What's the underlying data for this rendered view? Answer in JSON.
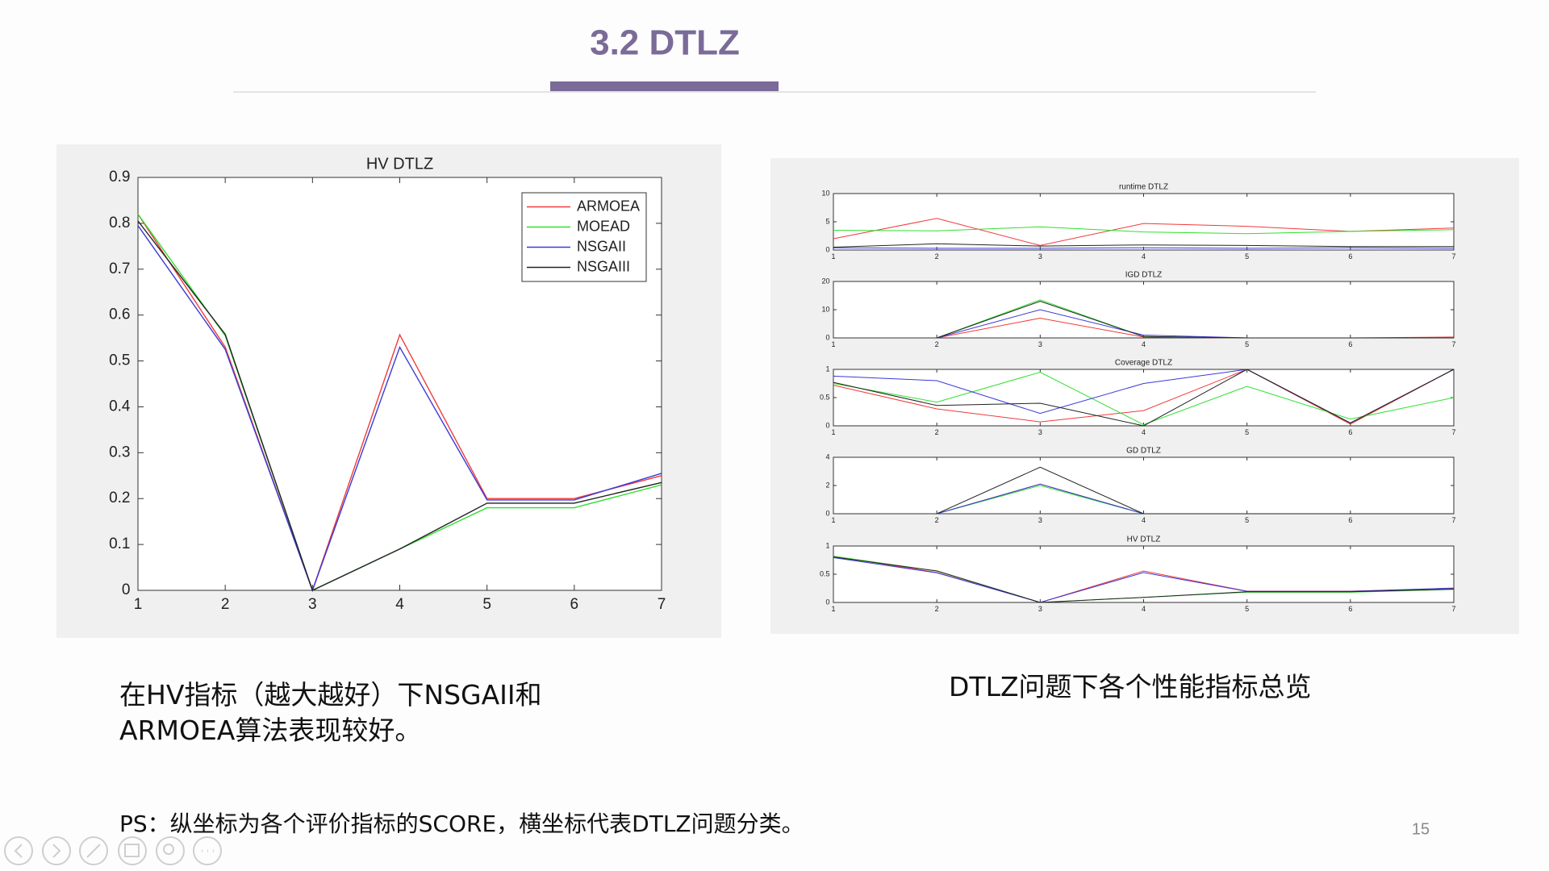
{
  "title": "3.2 DTLZ",
  "chart_data": [
    {
      "type": "line",
      "title": "HV DTLZ",
      "x": [
        1,
        2,
        3,
        4,
        5,
        6,
        7
      ],
      "xlim": [
        1,
        7
      ],
      "xticks": [
        1,
        2,
        3,
        4,
        5,
        6,
        7
      ],
      "ylim": [
        0,
        0.9
      ],
      "yticks": [
        0,
        0.1,
        0.2,
        0.3,
        0.4,
        0.5,
        0.6,
        0.7,
        0.8,
        0.9
      ],
      "legend": "upper right",
      "series": [
        {
          "name": "ARMOEA",
          "color": "#f03a3a",
          "values": [
            0.82,
            0.53,
            0,
            0.557,
            0.2,
            0.2,
            0.25
          ]
        },
        {
          "name": "MOEAD",
          "color": "#2fe02f",
          "values": [
            0.82,
            0.555,
            0,
            0.09,
            0.18,
            0.18,
            0.23
          ]
        },
        {
          "name": "NSGAII",
          "color": "#3a3ad8",
          "values": [
            0.795,
            0.525,
            0,
            0.53,
            0.197,
            0.197,
            0.255
          ]
        },
        {
          "name": "NSGAIII",
          "color": "#222222",
          "values": [
            0.805,
            0.558,
            0,
            0.09,
            0.19,
            0.19,
            0.235
          ]
        }
      ]
    },
    {
      "type": "line",
      "title": "runtime DTLZ",
      "x": [
        1,
        2,
        3,
        4,
        5,
        6,
        7
      ],
      "xlim": [
        1,
        7
      ],
      "xticks": [
        1,
        2,
        3,
        4,
        5,
        6,
        7
      ],
      "ylim": [
        0,
        10
      ],
      "yticks": [
        0,
        5,
        10
      ],
      "series": [
        {
          "color": "#f03a3a",
          "values": [
            2,
            5.6,
            0.8,
            4.7,
            4.2,
            3.3,
            3.9
          ]
        },
        {
          "color": "#2fe02f",
          "values": [
            3.5,
            3.4,
            4.1,
            3.2,
            2.9,
            3.3,
            3.6
          ]
        },
        {
          "color": "#3a3ad8",
          "values": [
            0.4,
            0.3,
            0.3,
            0.4,
            0.3,
            0.4,
            0.3
          ]
        },
        {
          "color": "#222222",
          "values": [
            0.5,
            1.1,
            0.7,
            0.9,
            0.8,
            0.6,
            0.6
          ]
        }
      ]
    },
    {
      "type": "line",
      "title": "IGD DTLZ",
      "x": [
        1,
        2,
        3,
        4,
        5,
        6,
        7
      ],
      "xlim": [
        1,
        7
      ],
      "xticks": [
        1,
        2,
        3,
        4,
        5,
        6,
        7
      ],
      "ylim": [
        0,
        20
      ],
      "yticks": [
        0,
        10,
        20
      ],
      "series": [
        {
          "color": "#f03a3a",
          "values": [
            null,
            0,
            7,
            0.3,
            0,
            0,
            0.3
          ]
        },
        {
          "color": "#2fe02f",
          "values": [
            null,
            0,
            13.5,
            0.5,
            0,
            0,
            0
          ]
        },
        {
          "color": "#3a3ad8",
          "values": [
            null,
            0,
            10,
            1,
            0,
            0,
            0
          ]
        },
        {
          "color": "#222222",
          "values": [
            null,
            0,
            13,
            0.5,
            0,
            0,
            0
          ]
        }
      ]
    },
    {
      "type": "line",
      "title": "Coverage DTLZ",
      "x": [
        1,
        2,
        3,
        4,
        5,
        6,
        7
      ],
      "xlim": [
        1,
        7
      ],
      "xticks": [
        1,
        2,
        3,
        4,
        5,
        6,
        7
      ],
      "ylim": [
        0,
        1
      ],
      "yticks": [
        0,
        0.5,
        1
      ],
      "series": [
        {
          "color": "#f03a3a",
          "values": [
            0.72,
            0.3,
            0.07,
            0.27,
            1,
            0.03,
            1
          ]
        },
        {
          "color": "#2fe02f",
          "values": [
            0.75,
            0.42,
            0.95,
            0.02,
            0.7,
            0.12,
            0.5
          ]
        },
        {
          "color": "#3a3ad8",
          "values": [
            0.88,
            0.8,
            0.22,
            0.75,
            1,
            0.05,
            1
          ]
        },
        {
          "color": "#222222",
          "values": [
            0.77,
            0.36,
            0.4,
            0,
            1,
            0.05,
            1
          ]
        }
      ]
    },
    {
      "type": "line",
      "title": "GD DTLZ",
      "x": [
        1,
        2,
        3,
        4,
        5,
        6,
        7
      ],
      "xlim": [
        1,
        7
      ],
      "xticks": [
        1,
        2,
        3,
        4,
        5,
        6,
        7
      ],
      "ylim": [
        0,
        4
      ],
      "yticks": [
        0,
        2,
        4
      ],
      "series": [
        {
          "color": "#f03a3a",
          "values": [
            null,
            0,
            2.1,
            0,
            0,
            0,
            0
          ]
        },
        {
          "color": "#2fe02f",
          "values": [
            null,
            0,
            2,
            0,
            0,
            0,
            0
          ]
        },
        {
          "color": "#3a3ad8",
          "values": [
            null,
            0,
            2.1,
            0,
            0,
            0,
            0
          ]
        },
        {
          "color": "#222222",
          "values": [
            null,
            0,
            3.3,
            0,
            0,
            0,
            0
          ]
        }
      ]
    },
    {
      "type": "line",
      "title": "HV DTLZ",
      "x": [
        1,
        2,
        3,
        4,
        5,
        6,
        7
      ],
      "xlim": [
        1,
        7
      ],
      "xticks": [
        1,
        2,
        3,
        4,
        5,
        6,
        7
      ],
      "ylim": [
        0,
        1
      ],
      "yticks": [
        0,
        0.5,
        1
      ],
      "series": [
        {
          "color": "#f03a3a",
          "values": [
            0.82,
            0.53,
            0,
            0.557,
            0.2,
            0.2,
            0.25
          ]
        },
        {
          "color": "#2fe02f",
          "values": [
            0.82,
            0.555,
            0,
            0.09,
            0.18,
            0.18,
            0.23
          ]
        },
        {
          "color": "#3a3ad8",
          "values": [
            0.795,
            0.525,
            0,
            0.53,
            0.197,
            0.197,
            0.255
          ]
        },
        {
          "color": "#222222",
          "values": [
            0.805,
            0.558,
            0,
            0.09,
            0.19,
            0.19,
            0.235
          ]
        }
      ]
    }
  ],
  "captions": [
    "在HV指标（越大越好）下NSGAII和ARMOEA算法表现较好。",
    "DTLZ问题下各个性能指标总览",
    "PS：纵坐标为各个评价指标的SCORE，横坐标代表DTLZ问题分类。"
  ],
  "page_number": "15"
}
